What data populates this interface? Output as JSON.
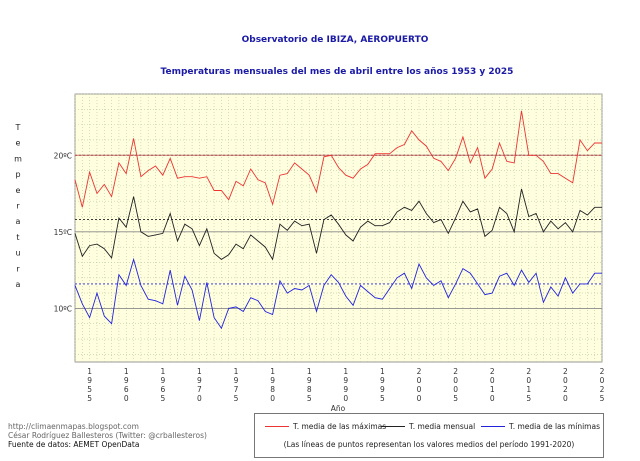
{
  "chart_data": {
    "type": "line",
    "title": "Observatorio de IBIZA, AEROPUERTO",
    "subtitle": "Temperaturas mensuales del mes de abril entre los años 1953 y 2025",
    "xlabel": "Año",
    "ylabel": "Temperatura",
    "unit": "ºC",
    "x_start": 1953,
    "x_end": 2025,
    "ylim": [
      6.5,
      24
    ],
    "y_ticks": [
      10,
      15,
      20
    ],
    "y_tick_labels": [
      "10ºC",
      "15ºC",
      "20ºC"
    ],
    "x_ticks": [
      1955,
      1960,
      1965,
      1970,
      1975,
      1980,
      1985,
      1990,
      1995,
      2000,
      2005,
      2010,
      2015,
      2020,
      2025
    ],
    "grid": true,
    "legend_position": "bottom",
    "x": [
      1953,
      1954,
      1955,
      1956,
      1957,
      1958,
      1959,
      1960,
      1961,
      1962,
      1963,
      1964,
      1965,
      1966,
      1967,
      1968,
      1969,
      1970,
      1971,
      1972,
      1973,
      1974,
      1975,
      1976,
      1977,
      1978,
      1979,
      1980,
      1981,
      1982,
      1983,
      1984,
      1985,
      1986,
      1987,
      1988,
      1989,
      1990,
      1991,
      1992,
      1993,
      1994,
      1995,
      1996,
      1997,
      1998,
      1999,
      2000,
      2001,
      2002,
      2003,
      2004,
      2005,
      2006,
      2007,
      2008,
      2009,
      2010,
      2011,
      2012,
      2013,
      2014,
      2015,
      2016,
      2017,
      2018,
      2019,
      2020,
      2021,
      2022,
      2023,
      2024,
      2025
    ],
    "series": [
      {
        "name": "T. media de las máximas",
        "color": "#ee3333",
        "values": [
          18.4,
          16.6,
          18.9,
          17.5,
          18.1,
          17.3,
          19.5,
          18.8,
          21.1,
          18.6,
          19.0,
          19.3,
          18.7,
          19.8,
          18.5,
          18.6,
          18.6,
          18.5,
          18.6,
          17.7,
          17.7,
          17.1,
          18.3,
          18.0,
          19.1,
          18.4,
          18.2,
          16.8,
          18.7,
          18.8,
          19.5,
          19.1,
          18.7,
          17.6,
          19.9,
          20.0,
          19.2,
          18.7,
          18.5,
          19.1,
          19.4,
          20.1,
          20.1,
          20.1,
          20.5,
          20.7,
          21.6,
          21.0,
          20.6,
          19.8,
          19.6,
          19.0,
          19.8,
          21.2,
          19.5,
          20.5,
          18.5,
          19.1,
          20.8,
          19.6,
          19.5,
          22.9,
          20.0,
          20.0,
          19.6,
          18.8,
          18.8,
          18.5,
          18.2,
          21.0,
          20.3,
          20.8,
          20.8
        ]
      },
      {
        "name": "T. media mensual",
        "color": "#222222",
        "values": [
          14.9,
          13.4,
          14.1,
          14.2,
          13.9,
          13.3,
          15.9,
          15.3,
          17.3,
          15.0,
          14.7,
          14.8,
          14.9,
          16.2,
          14.4,
          15.5,
          15.2,
          14.1,
          15.2,
          13.6,
          13.2,
          13.5,
          14.2,
          13.9,
          14.8,
          14.4,
          14.0,
          13.2,
          15.5,
          15.1,
          15.7,
          15.4,
          15.5,
          13.6,
          15.8,
          16.1,
          15.5,
          14.8,
          14.4,
          15.3,
          15.7,
          15.4,
          15.4,
          15.6,
          16.3,
          16.6,
          16.4,
          17.0,
          16.2,
          15.6,
          15.8,
          14.9,
          15.9,
          17.0,
          16.3,
          16.5,
          14.7,
          15.1,
          16.6,
          16.2,
          15.0,
          17.8,
          16.0,
          16.2,
          15.0,
          15.7,
          15.2,
          15.6,
          15.0,
          16.4,
          16.1,
          16.6,
          16.6
        ]
      },
      {
        "name": "T. media de las mínimas",
        "color": "#2222dd",
        "values": [
          11.5,
          10.3,
          9.4,
          11.0,
          9.5,
          9.0,
          12.2,
          11.5,
          13.2,
          11.5,
          10.6,
          10.5,
          10.3,
          12.5,
          10.2,
          12.1,
          11.2,
          9.2,
          11.7,
          9.4,
          8.7,
          10.0,
          10.1,
          9.8,
          10.7,
          10.5,
          9.8,
          9.6,
          11.8,
          11.0,
          11.3,
          11.2,
          11.5,
          9.8,
          11.5,
          12.2,
          11.7,
          10.8,
          10.2,
          11.5,
          11.1,
          10.7,
          10.6,
          11.3,
          12.0,
          12.3,
          11.3,
          12.9,
          12.0,
          11.5,
          11.8,
          10.7,
          11.6,
          12.6,
          12.3,
          11.6,
          10.9,
          11.0,
          12.1,
          12.3,
          11.5,
          12.5,
          11.7,
          12.3,
          10.4,
          11.4,
          10.8,
          12.0,
          11.0,
          11.6,
          11.6,
          12.3,
          12.3
        ]
      }
    ],
    "reference_means": {
      "label": "(Las líneas de puntos representan los valores medios del período 1991-2020)",
      "max_mean": 20.0,
      "mean_mean": 15.8,
      "min_mean": 11.6
    }
  },
  "credits": {
    "line1": "http://climaenmapas.blogspot.com",
    "line2": "César Rodríguez Ballesteros (Twitter: @crballesteros)",
    "line3": "Fuente de datos: AEMET OpenData"
  }
}
